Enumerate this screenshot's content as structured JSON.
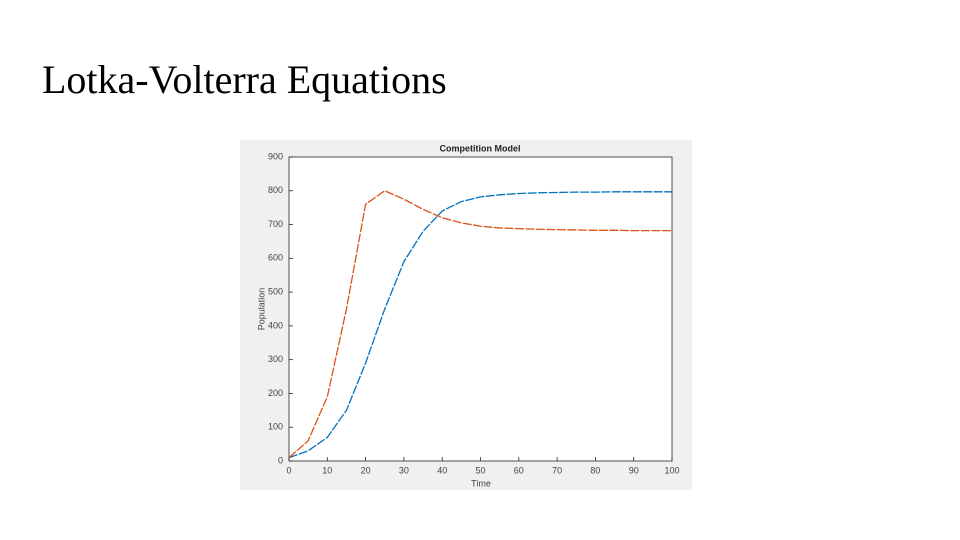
{
  "slide_title": "Lotka-Volterra Equations",
  "chart_data": {
    "type": "line",
    "title": "Competition Model",
    "x_label": "Time",
    "y_label": "Population",
    "x": [
      0,
      5,
      10,
      15,
      20,
      25,
      30,
      35,
      40,
      45,
      50,
      55,
      60,
      65,
      70,
      75,
      80,
      85,
      90,
      95,
      100
    ],
    "series": [
      {
        "color": "#0072bd",
        "values": [
          10,
          30,
          70,
          150,
          290,
          450,
          590,
          680,
          740,
          768,
          782,
          788,
          792,
          794,
          795,
          796,
          796,
          797,
          797,
          797,
          797
        ]
      },
      {
        "color": "#d95319",
        "values": [
          10,
          60,
          190,
          450,
          760,
          800,
          775,
          745,
          720,
          705,
          695,
          690,
          688,
          686,
          685,
          684,
          683,
          683,
          682,
          682,
          682
        ]
      }
    ],
    "xlim": [
      0,
      100
    ],
    "xticks": [
      0,
      10,
      20,
      30,
      40,
      50,
      60,
      70,
      80,
      90,
      100
    ],
    "ylim": [
      0,
      900
    ],
    "yticks": [
      0,
      100,
      200,
      300,
      400,
      500,
      600,
      700,
      800,
      900
    ]
  }
}
